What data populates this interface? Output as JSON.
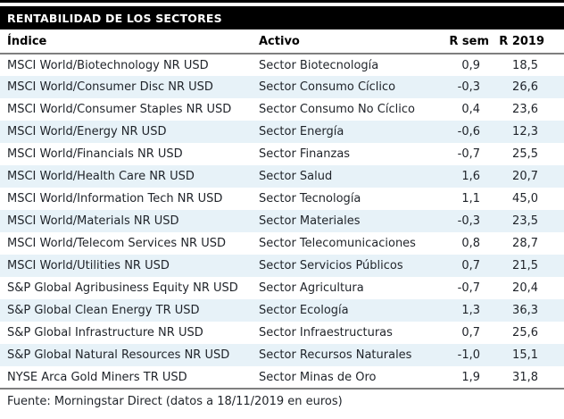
{
  "title_bar": {
    "title": "RENTABILIDAD DE LOS SECTORES"
  },
  "table": {
    "columns": {
      "indice": "Índice",
      "activo": "Activo",
      "r_sem": "R sem",
      "r_2019": "R 2019"
    },
    "rows": [
      {
        "indice": "MSCI World/Biotechnology NR USD",
        "activo": "Sector Biotecnología",
        "r_sem": "0,9",
        "r_2019": "18,5"
      },
      {
        "indice": "MSCI World/Consumer Disc NR USD",
        "activo": "Sector Consumo Cíclico",
        "r_sem": "-0,3",
        "r_2019": "26,6"
      },
      {
        "indice": "MSCI World/Consumer Staples NR USD",
        "activo": "Sector Consumo No Cíclico",
        "r_sem": "0,4",
        "r_2019": "23,6"
      },
      {
        "indice": "MSCI World/Energy NR USD",
        "activo": "Sector Energía",
        "r_sem": "-0,6",
        "r_2019": "12,3"
      },
      {
        "indice": "MSCI World/Financials NR USD",
        "activo": "Sector Finanzas",
        "r_sem": "-0,7",
        "r_2019": "25,5"
      },
      {
        "indice": "MSCI World/Health Care NR USD",
        "activo": "Sector Salud",
        "r_sem": "1,6",
        "r_2019": "20,7"
      },
      {
        "indice": "MSCI World/Information Tech NR USD",
        "activo": "Sector Tecnología",
        "r_sem": "1,1",
        "r_2019": "45,0"
      },
      {
        "indice": "MSCI World/Materials NR USD",
        "activo": "Sector Materiales",
        "r_sem": "-0,3",
        "r_2019": "23,5"
      },
      {
        "indice": "MSCI World/Telecom Services NR USD",
        "activo": "Sector Telecomunicaciones",
        "r_sem": "0,8",
        "r_2019": "28,7"
      },
      {
        "indice": "MSCI World/Utilities NR USD",
        "activo": "Sector Servicios Públicos",
        "r_sem": "0,7",
        "r_2019": "21,5"
      },
      {
        "indice": "S&P Global Agribusiness Equity NR USD",
        "activo": "Sector Agricultura",
        "r_sem": "-0,7",
        "r_2019": "20,4"
      },
      {
        "indice": "S&P Global Clean Energy TR USD",
        "activo": "Sector Ecología",
        "r_sem": "1,3",
        "r_2019": "36,3"
      },
      {
        "indice": "S&P Global Infrastructure NR USD",
        "activo": "Sector Infraestructuras",
        "r_sem": "0,7",
        "r_2019": "25,6"
      },
      {
        "indice": "S&P Global Natural Resources NR USD",
        "activo": "Sector Recursos Naturales",
        "r_sem": "-1,0",
        "r_2019": "15,1"
      },
      {
        "indice": "NYSE Arca Gold Miners TR USD",
        "activo": "Sector Minas de Oro",
        "r_sem": "1,9",
        "r_2019": "31,8"
      }
    ]
  },
  "footer": {
    "source": "Fuente: Morningstar Direct (datos a 18/11/2019 en euros)"
  },
  "colors": {
    "bar_background": "#000000",
    "bar_text": "#ffffff",
    "row_alt_background": "#e7f2f8",
    "body_text": "#1f2329",
    "rule": "#7f7f7f"
  }
}
